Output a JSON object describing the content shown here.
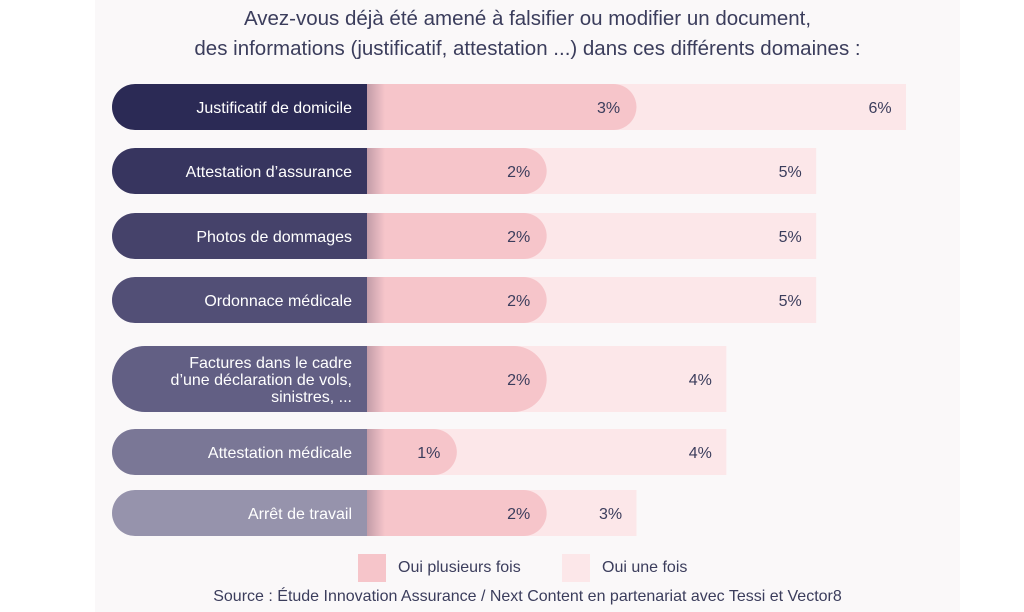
{
  "chart_data": {
    "type": "bar",
    "title_lines": [
      "Avez-vous déjà été amené à falsifier ou modifier un document,",
      "des informations (justificatif, attestation ...) dans ces différents domaines :"
    ],
    "categories": [
      [
        "Justificatif de domicile"
      ],
      [
        "Attestation d’assurance"
      ],
      [
        "Photos de dommages"
      ],
      [
        "Ordonnace médicale"
      ],
      [
        "Factures dans le cadre",
        "d’une déclaration de vols,",
        "sinistres, ..."
      ],
      [
        "Attestation médicale"
      ],
      [
        "Arrêt de travail"
      ]
    ],
    "series": [
      {
        "name": "Oui plusieurs fois",
        "values": [
          3,
          2,
          2,
          2,
          2,
          1,
          2
        ],
        "labels": [
          "3%",
          "2%",
          "2%",
          "2%",
          "2%",
          "1%",
          "2%"
        ],
        "color": "#f6c5ca"
      },
      {
        "name": "Oui une fois",
        "values": [
          6,
          5,
          5,
          5,
          4,
          4,
          3
        ],
        "labels": [
          "6%",
          "5%",
          "5%",
          "5%",
          "4%",
          "4%",
          "3%"
        ],
        "color": "#fce7e9"
      }
    ],
    "label_colors": [
      "#2b2a55",
      "#37355f",
      "#45426a",
      "#524f76",
      "#625f84",
      "#7a7796",
      "#9693ac"
    ],
    "orientation": "horizontal",
    "legend_position": "bottom",
    "grid": false
  },
  "source": "Source : Étude Innovation Assurance / Next Content en partenariat avec Tessi et Vector8"
}
